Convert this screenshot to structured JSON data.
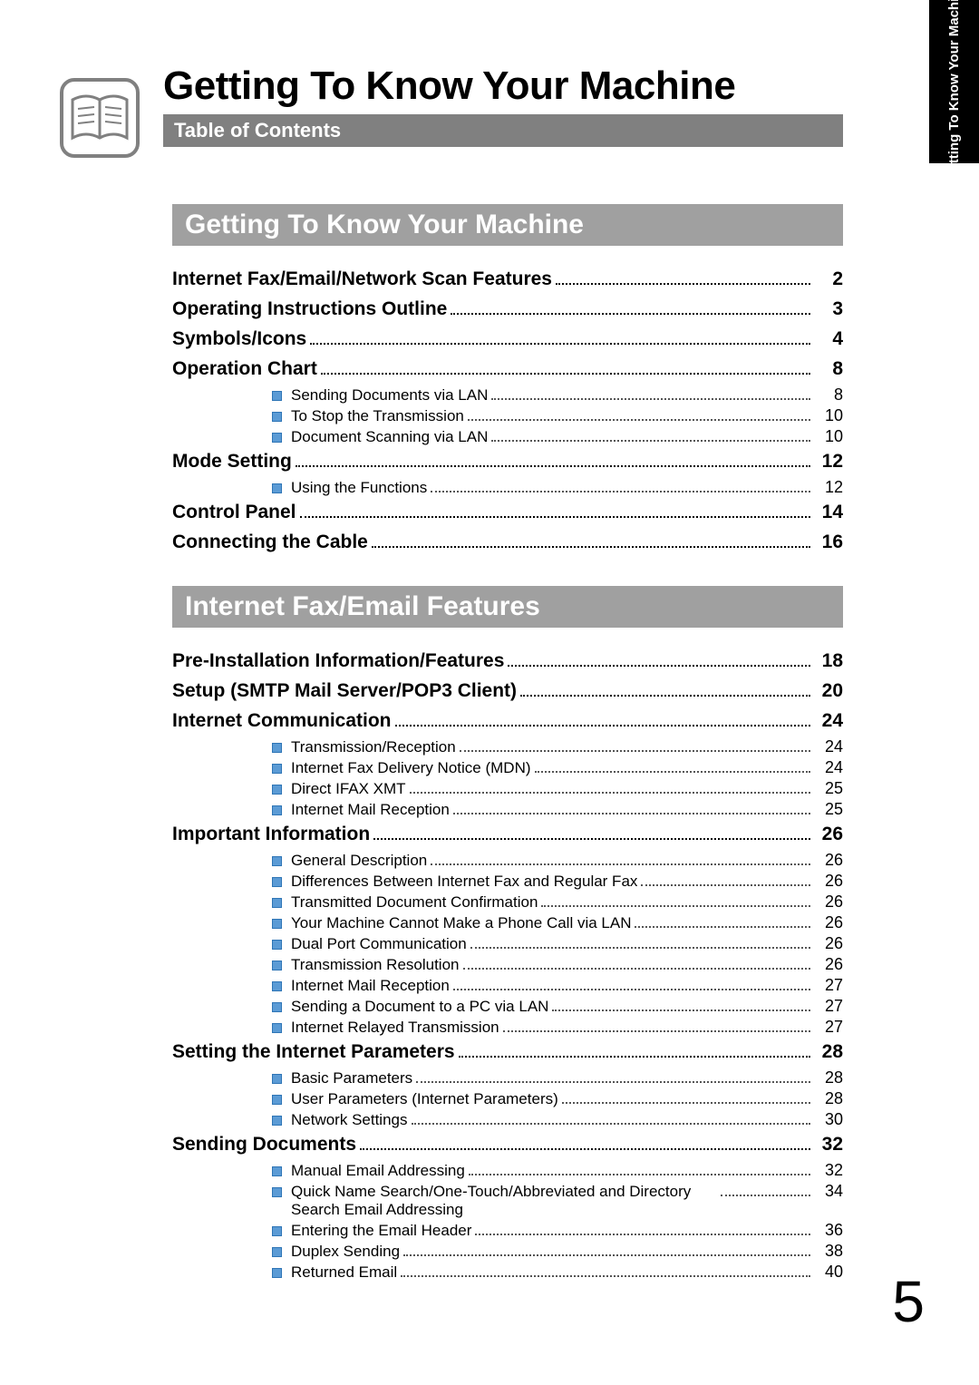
{
  "tab_label": "Getting To Know Your\nMachine",
  "main_title": "Getting To Know Your Machine",
  "subtitle": "Table of Contents",
  "page_number": "5",
  "sections": [
    {
      "header": "Getting To Know Your Machine",
      "items": [
        {
          "type": "main",
          "label": "Internet Fax/Email/Network Scan Features",
          "page": "2"
        },
        {
          "type": "main",
          "label": "Operating Instructions Outline",
          "page": "3"
        },
        {
          "type": "main",
          "label": "Symbols/Icons",
          "page": "4"
        },
        {
          "type": "main",
          "label": "Operation Chart",
          "page": "8"
        },
        {
          "type": "sub",
          "label": "Sending Documents via LAN",
          "page": "8"
        },
        {
          "type": "sub",
          "label": "To Stop the Transmission",
          "page": "10"
        },
        {
          "type": "sub",
          "label": "Document Scanning via LAN",
          "page": "10"
        },
        {
          "type": "main",
          "label": "Mode Setting",
          "page": "12"
        },
        {
          "type": "sub",
          "label": "Using the Functions",
          "page": "12"
        },
        {
          "type": "main",
          "label": "Control Panel",
          "page": "14"
        },
        {
          "type": "main",
          "label": "Connecting the Cable",
          "page": "16"
        }
      ]
    },
    {
      "header": "Internet Fax/Email Features",
      "items": [
        {
          "type": "main",
          "label": "Pre-Installation Information/Features",
          "page": "18"
        },
        {
          "type": "main",
          "label": "Setup (SMTP Mail Server/POP3 Client)",
          "page": "20"
        },
        {
          "type": "main",
          "label": "Internet Communication",
          "page": "24"
        },
        {
          "type": "sub",
          "label": "Transmission/Reception",
          "page": "24"
        },
        {
          "type": "sub",
          "label": "Internet Fax Delivery Notice (MDN)",
          "page": "24"
        },
        {
          "type": "sub",
          "label": "Direct IFAX XMT",
          "page": "25"
        },
        {
          "type": "sub",
          "label": "Internet Mail Reception",
          "page": "25"
        },
        {
          "type": "main",
          "label": "Important Information",
          "page": "26"
        },
        {
          "type": "sub",
          "label": "General Description",
          "page": "26"
        },
        {
          "type": "sub",
          "label": "Differences Between Internet Fax and Regular Fax",
          "page": "26"
        },
        {
          "type": "sub",
          "label": "Transmitted Document Confirmation",
          "page": "26"
        },
        {
          "type": "sub",
          "label": "Your Machine Cannot Make a Phone Call via LAN",
          "page": "26"
        },
        {
          "type": "sub",
          "label": "Dual Port Communication",
          "page": "26"
        },
        {
          "type": "sub",
          "label": "Transmission Resolution",
          "page": "26"
        },
        {
          "type": "sub",
          "label": "Internet Mail Reception",
          "page": "27"
        },
        {
          "type": "sub",
          "label": "Sending a Document to a PC via LAN",
          "page": "27"
        },
        {
          "type": "sub",
          "label": "Internet Relayed Transmission",
          "page": "27"
        },
        {
          "type": "main",
          "label": "Setting the Internet Parameters",
          "page": "28"
        },
        {
          "type": "sub",
          "label": "Basic Parameters",
          "page": "28"
        },
        {
          "type": "sub",
          "label": "User Parameters (Internet Parameters)",
          "page": "28"
        },
        {
          "type": "sub",
          "label": "Network Settings",
          "page": "30"
        },
        {
          "type": "main",
          "label": "Sending Documents",
          "page": "32"
        },
        {
          "type": "sub",
          "label": "Manual Email Addressing",
          "page": "32"
        },
        {
          "type": "sub",
          "label": "Quick Name Search/One-Touch/Abbreviated and Directory Search Email Addressing",
          "page": "34",
          "long": true
        },
        {
          "type": "sub",
          "label": "Entering the Email Header",
          "page": "36"
        },
        {
          "type": "sub",
          "label": "Duplex Sending",
          "page": "38"
        },
        {
          "type": "sub",
          "label": "Returned Email",
          "page": "40"
        }
      ]
    }
  ],
  "colors": {
    "tab_bg": "#000000",
    "section_header_bg": "#a0a0a0",
    "subtitle_bg": "#808080",
    "bullet_fill": "#5b9bd5",
    "bullet_border": "#2e75b6"
  }
}
